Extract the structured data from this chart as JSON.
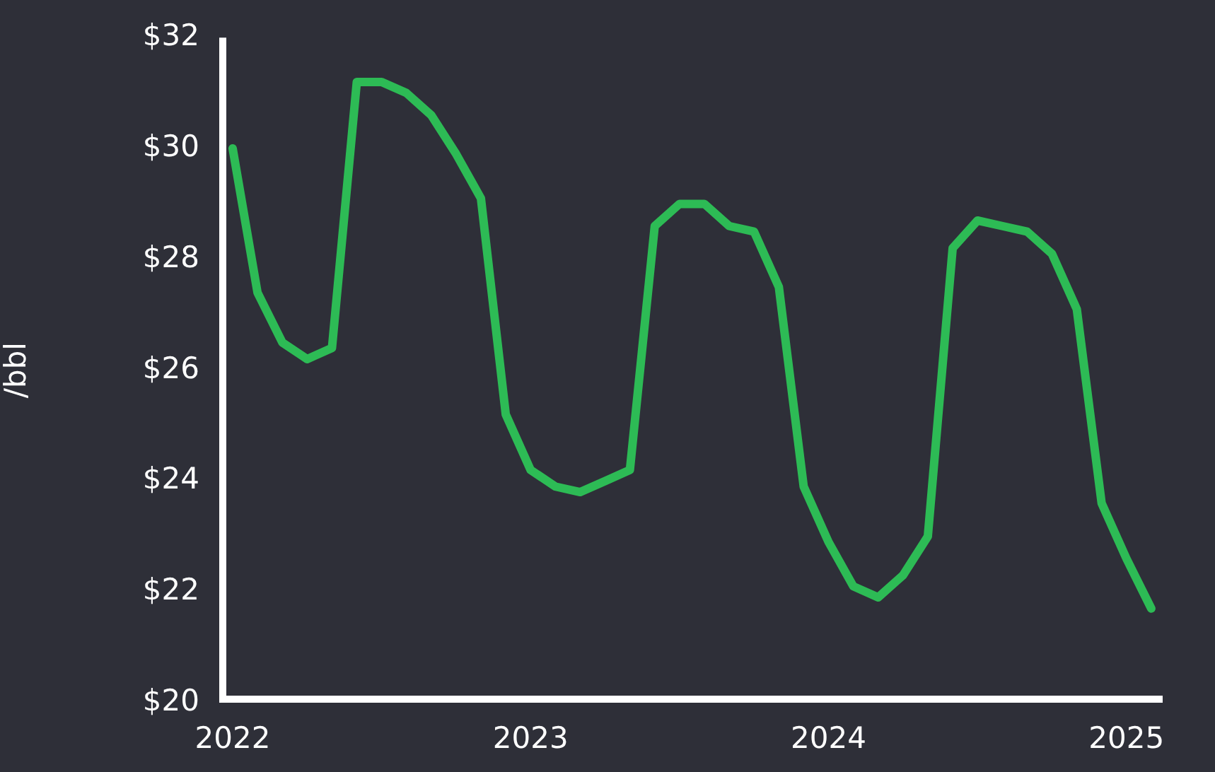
{
  "chart_data": {
    "type": "line",
    "ylabel": "/bbl",
    "x": [
      "2022-01",
      "2022-02",
      "2022-03",
      "2022-04",
      "2022-05",
      "2022-06",
      "2022-07",
      "2022-08",
      "2022-09",
      "2022-10",
      "2022-11",
      "2022-12",
      "2023-01",
      "2023-02",
      "2023-03",
      "2023-04",
      "2023-05",
      "2023-06",
      "2023-07",
      "2023-08",
      "2023-09",
      "2023-10",
      "2023-11",
      "2023-12",
      "2024-01",
      "2024-02",
      "2024-03",
      "2024-04",
      "2024-05",
      "2024-06",
      "2024-07",
      "2024-08",
      "2024-09",
      "2024-10",
      "2024-11",
      "2024-12",
      "2025-01",
      "2025-02"
    ],
    "series": [
      {
        "color": "#2dbb55",
        "values": [
          30.0,
          27.4,
          26.5,
          26.2,
          26.4,
          31.2,
          31.2,
          31.0,
          30.6,
          29.9,
          29.1,
          25.2,
          24.2,
          23.9,
          23.8,
          24.0,
          24.2,
          28.6,
          29.0,
          29.0,
          28.6,
          28.5,
          27.5,
          23.9,
          22.9,
          22.1,
          21.9,
          22.3,
          23.0,
          28.2,
          28.7,
          28.6,
          28.5,
          28.1,
          27.1,
          23.6,
          22.6,
          21.7
        ]
      }
    ],
    "xlim": [
      "2021-12-15",
      "2025-02-15"
    ],
    "xticks": [
      "2022",
      "2023",
      "2024",
      "2025"
    ],
    "ylim": [
      20,
      32
    ],
    "yticks": [
      {
        "value": 20,
        "label": "$20"
      },
      {
        "value": 22,
        "label": "$22"
      },
      {
        "value": 24,
        "label": "$24"
      },
      {
        "value": 26,
        "label": "$26"
      },
      {
        "value": 28,
        "label": "$28"
      },
      {
        "value": 30,
        "label": "$30"
      },
      {
        "value": 32,
        "label": "$32"
      }
    ],
    "grid": false,
    "legend": false,
    "marker": "none",
    "line_style": "solid"
  }
}
